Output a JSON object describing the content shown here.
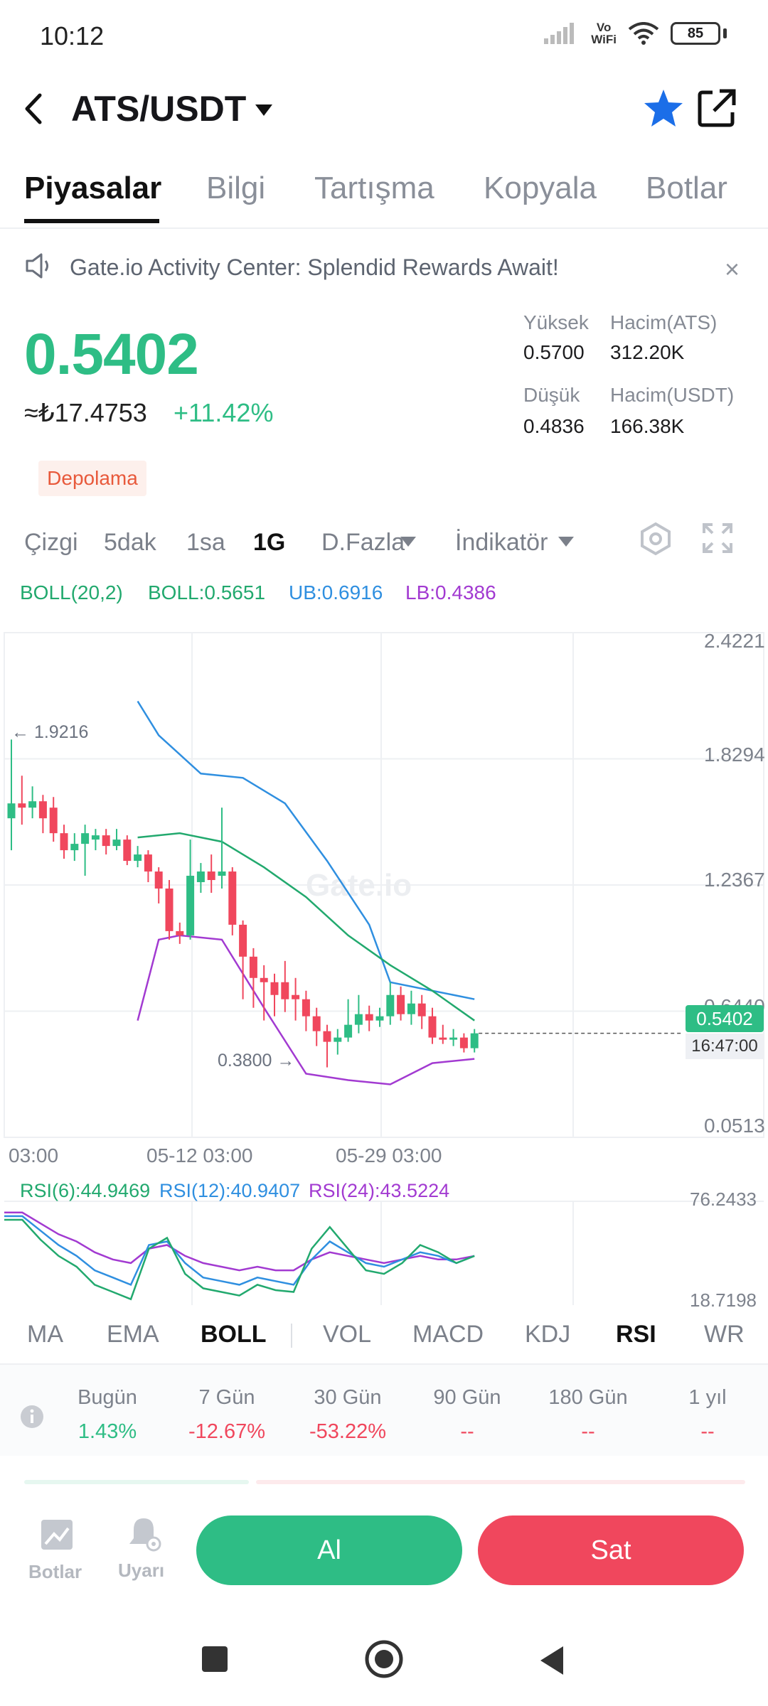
{
  "status": {
    "time": "10:12",
    "vowifi_top": "Vo",
    "vowifi_bottom": "WiFi",
    "battery": "85"
  },
  "header": {
    "pair": "ATS/USDT"
  },
  "tabs": [
    "Piyasalar",
    "Bilgi",
    "Tartışma",
    "Kopyala",
    "Botlar"
  ],
  "notice": {
    "text": "Gate.io Activity Center: Splendid Rewards Await!",
    "close": "×"
  },
  "ticker": {
    "price": "0.5402",
    "fiat": "≈₺17.4753",
    "change": "+11.42%",
    "badge": "Depolama",
    "high_label": "Yüksek",
    "high": "0.5700",
    "vol_ats_label": "Hacim(ATS)",
    "vol_ats": "312.20K",
    "low_label": "Düşük",
    "low": "0.4836",
    "vol_usdt_label": "Hacim(USDT)",
    "vol_usdt": "166.38K"
  },
  "toolbar": {
    "line": "Çizgi",
    "m5": "5dak",
    "h1": "1sa",
    "d1": "1G",
    "more": "D.Fazla",
    "indicator": "İndikatör"
  },
  "boll": {
    "name": "BOLL(20,2)",
    "mid": "BOLL:0.5651",
    "ub": "UB:0.6916",
    "lb": "LB:0.4386"
  },
  "chart": {
    "y_ticks": [
      "2.4221",
      "1.8294",
      "1.2367",
      "0.6440",
      "0.0513"
    ],
    "x_ticks": [
      "03:00",
      "05-12 03:00",
      "05-29 03:00"
    ],
    "max_label": "← 1.9216",
    "min_label": "0.3800 →",
    "last_price": "0.5402",
    "countdown": "16:47:00",
    "watermark": "Gate.io"
  },
  "rsi": {
    "r6": "RSI(6):44.9469",
    "r12": "RSI(12):40.9407",
    "r24": "RSI(24):43.5224",
    "top": "76.2433",
    "bottom": "18.7198"
  },
  "indicators": [
    "MA",
    "EMA",
    "BOLL",
    "VOL",
    "MACD",
    "KDJ",
    "RSI",
    "WR"
  ],
  "performance": [
    {
      "label": "Bugün",
      "value": "1.43%"
    },
    {
      "label": "7 Gün",
      "value": "-12.67%"
    },
    {
      "label": "30 Gün",
      "value": "-53.22%"
    },
    {
      "label": "90 Gün",
      "value": "--"
    },
    {
      "label": "180 Gün",
      "value": "--"
    },
    {
      "label": "1 yıl",
      "value": "--"
    }
  ],
  "actions": {
    "bots": "Botlar",
    "alerts": "Uyarı",
    "buy": "Al",
    "sell": "Sat"
  },
  "colors": {
    "up": "#2ebd85",
    "down": "#f0475d",
    "ub": "#2f8fe0",
    "lb": "#a23ad1",
    "mid": "#22a96e",
    "star": "#1b6ee8"
  },
  "chart_data": {
    "type": "candlestick",
    "y_range": [
      0.0513,
      2.4221
    ],
    "candles_approx": [
      {
        "o": 1.55,
        "c": 1.62,
        "h": 1.92,
        "l": 1.4
      },
      {
        "o": 1.62,
        "c": 1.6,
        "h": 1.75,
        "l": 1.52
      },
      {
        "o": 1.6,
        "c": 1.63,
        "h": 1.7,
        "l": 1.55
      },
      {
        "o": 1.63,
        "c": 1.55,
        "h": 1.66,
        "l": 1.48
      },
      {
        "o": 1.6,
        "c": 1.48,
        "h": 1.65,
        "l": 1.44
      },
      {
        "o": 1.48,
        "c": 1.4,
        "h": 1.52,
        "l": 1.36
      },
      {
        "o": 1.4,
        "c": 1.43,
        "h": 1.48,
        "l": 1.35
      },
      {
        "o": 1.43,
        "c": 1.48,
        "h": 1.52,
        "l": 1.28
      },
      {
        "o": 1.45,
        "c": 1.47,
        "h": 1.5,
        "l": 1.4
      },
      {
        "o": 1.47,
        "c": 1.42,
        "h": 1.5,
        "l": 1.38
      },
      {
        "o": 1.42,
        "c": 1.45,
        "h": 1.5,
        "l": 1.4
      },
      {
        "o": 1.45,
        "c": 1.35,
        "h": 1.47,
        "l": 1.33
      },
      {
        "o": 1.35,
        "c": 1.38,
        "h": 1.42,
        "l": 1.32
      },
      {
        "o": 1.38,
        "c": 1.3,
        "h": 1.4,
        "l": 1.25
      },
      {
        "o": 1.3,
        "c": 1.22,
        "h": 1.32,
        "l": 1.15
      },
      {
        "o": 1.22,
        "c": 1.02,
        "h": 1.26,
        "l": 0.98
      },
      {
        "o": 1.02,
        "c": 1.0,
        "h": 1.06,
        "l": 0.96
      },
      {
        "o": 1.0,
        "c": 1.28,
        "h": 1.45,
        "l": 0.98
      },
      {
        "o": 1.25,
        "c": 1.3,
        "h": 1.34,
        "l": 1.2
      },
      {
        "o": 1.3,
        "c": 1.26,
        "h": 1.38,
        "l": 1.2
      },
      {
        "o": 1.28,
        "c": 1.3,
        "h": 1.6,
        "l": 1.22
      },
      {
        "o": 1.3,
        "c": 1.05,
        "h": 1.32,
        "l": 1.0
      },
      {
        "o": 1.05,
        "c": 0.9,
        "h": 1.07,
        "l": 0.7
      },
      {
        "o": 0.9,
        "c": 0.8,
        "h": 0.94,
        "l": 0.66
      },
      {
        "o": 0.8,
        "c": 0.78,
        "h": 0.86,
        "l": 0.6
      },
      {
        "o": 0.78,
        "c": 0.72,
        "h": 0.82,
        "l": 0.62
      },
      {
        "o": 0.78,
        "c": 0.7,
        "h": 0.88,
        "l": 0.64
      },
      {
        "o": 0.72,
        "c": 0.7,
        "h": 0.8,
        "l": 0.6
      },
      {
        "o": 0.7,
        "c": 0.62,
        "h": 0.74,
        "l": 0.55
      },
      {
        "o": 0.62,
        "c": 0.55,
        "h": 0.66,
        "l": 0.48
      },
      {
        "o": 0.55,
        "c": 0.5,
        "h": 0.58,
        "l": 0.38
      },
      {
        "o": 0.5,
        "c": 0.52,
        "h": 0.56,
        "l": 0.44
      },
      {
        "o": 0.52,
        "c": 0.58,
        "h": 0.7,
        "l": 0.5
      },
      {
        "o": 0.58,
        "c": 0.63,
        "h": 0.72,
        "l": 0.54
      },
      {
        "o": 0.63,
        "c": 0.6,
        "h": 0.67,
        "l": 0.55
      },
      {
        "o": 0.6,
        "c": 0.62,
        "h": 0.66,
        "l": 0.57
      },
      {
        "o": 0.62,
        "c": 0.72,
        "h": 0.78,
        "l": 0.58
      },
      {
        "o": 0.72,
        "c": 0.63,
        "h": 0.76,
        "l": 0.6
      },
      {
        "o": 0.63,
        "c": 0.68,
        "h": 0.74,
        "l": 0.58
      },
      {
        "o": 0.68,
        "c": 0.62,
        "h": 0.72,
        "l": 0.56
      },
      {
        "o": 0.62,
        "c": 0.52,
        "h": 0.66,
        "l": 0.49
      },
      {
        "o": 0.52,
        "c": 0.51,
        "h": 0.58,
        "l": 0.49
      },
      {
        "o": 0.51,
        "c": 0.52,
        "h": 0.56,
        "l": 0.48
      },
      {
        "o": 0.52,
        "c": 0.47,
        "h": 0.54,
        "l": 0.45
      },
      {
        "o": 0.47,
        "c": 0.54,
        "h": 0.56,
        "l": 0.45
      }
    ],
    "bb_mid": [
      [
        12,
        1.46
      ],
      [
        16,
        1.48
      ],
      [
        20,
        1.44
      ],
      [
        24,
        1.32
      ],
      [
        28,
        1.18
      ],
      [
        32,
        1.0
      ],
      [
        36,
        0.86
      ],
      [
        40,
        0.74
      ],
      [
        44,
        0.6
      ]
    ],
    "bb_upper": [
      [
        12,
        2.1
      ],
      [
        14,
        1.94
      ],
      [
        18,
        1.76
      ],
      [
        22,
        1.74
      ],
      [
        26,
        1.62
      ],
      [
        30,
        1.35
      ],
      [
        34,
        1.05
      ],
      [
        36,
        0.78
      ],
      [
        44,
        0.7
      ]
    ],
    "bb_lower": [
      [
        12,
        0.6
      ],
      [
        14,
        0.98
      ],
      [
        16,
        1.0
      ],
      [
        20,
        0.98
      ],
      [
        24,
        0.66
      ],
      [
        28,
        0.35
      ],
      [
        32,
        0.32
      ],
      [
        36,
        0.3
      ],
      [
        40,
        0.4
      ],
      [
        44,
        0.42
      ]
    ],
    "rsi": {
      "range": [
        18.7198,
        76.2433
      ],
      "r6": [
        66,
        66,
        55,
        46,
        40,
        30,
        26,
        22,
        50,
        56,
        36,
        28,
        26,
        24,
        30,
        27,
        26,
        50,
        62,
        50,
        38,
        36,
        42,
        52,
        48,
        42,
        46
      ],
      "r12": [
        68,
        68,
        60,
        52,
        46,
        38,
        34,
        30,
        52,
        54,
        42,
        34,
        32,
        30,
        34,
        32,
        30,
        44,
        54,
        48,
        42,
        40,
        44,
        48,
        46,
        42,
        46
      ],
      "r24": [
        70,
        70,
        64,
        58,
        54,
        48,
        44,
        42,
        50,
        52,
        46,
        42,
        40,
        38,
        40,
        38,
        38,
        44,
        48,
        46,
        44,
        42,
        44,
        46,
        44,
        44,
        46
      ]
    }
  }
}
